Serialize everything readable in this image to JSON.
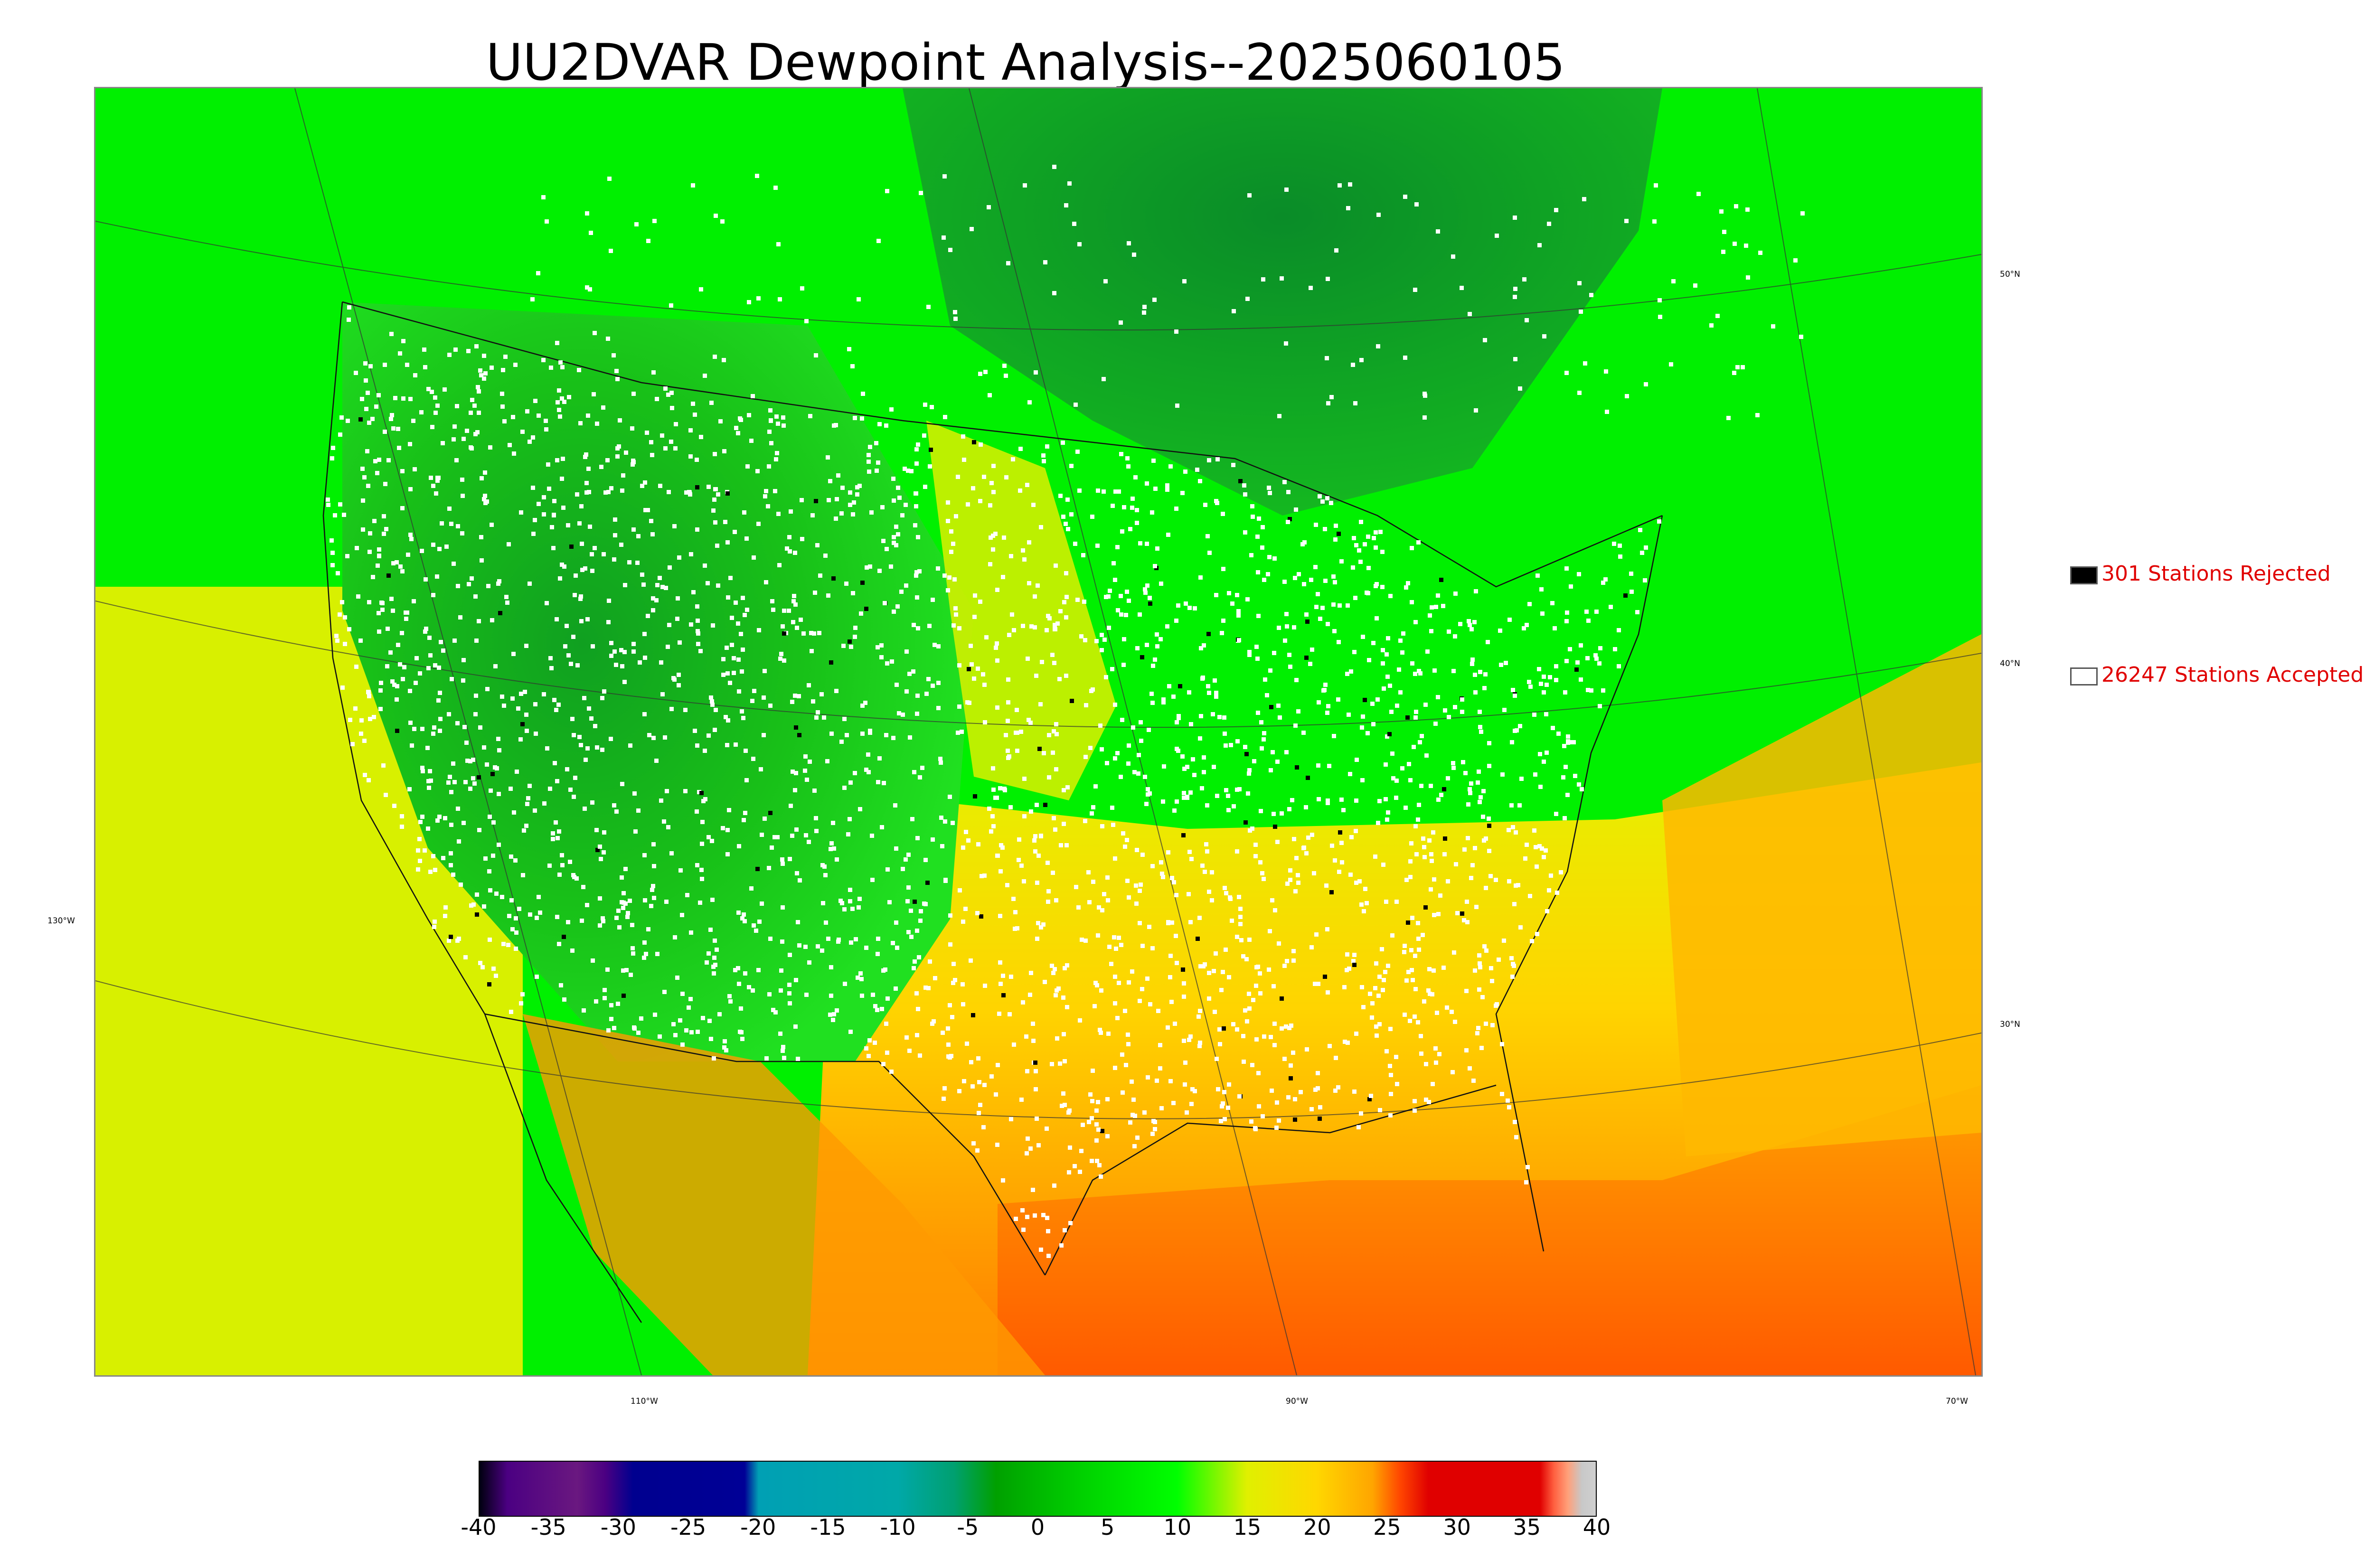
{
  "title": "UU2DVAR Dewpoint Analysis--2025060105",
  "map": {
    "latitude_labels": [
      "50°N",
      "40°N",
      "30°N"
    ],
    "longitude_labels": [
      "130°W",
      "110°W",
      "90°W",
      "70°W"
    ]
  },
  "legend": {
    "rejected": {
      "label": "301 Stations Rejected",
      "color": "#000000"
    },
    "accepted": {
      "label": "26247 Stations Accepted",
      "color": "#ffffff"
    }
  },
  "colorbar": {
    "ticks": [
      "-40",
      "-35",
      "-30",
      "-25",
      "-20",
      "-15",
      "-10",
      "-5",
      "0",
      "5",
      "10",
      "15",
      "20",
      "25",
      "30",
      "35",
      "40"
    ],
    "range": [
      -40,
      40
    ],
    "stops": [
      {
        "value": -40,
        "color": "#000010"
      },
      {
        "value": -38,
        "color": "#4b0082"
      },
      {
        "value": -33,
        "color": "#6a1880"
      },
      {
        "value": -31,
        "color": "#4b0082"
      },
      {
        "value": -29,
        "color": "#00008f"
      },
      {
        "value": -21,
        "color": "#000096"
      },
      {
        "value": -20,
        "color": "#00a0b4"
      },
      {
        "value": -10,
        "color": "#00a8a8"
      },
      {
        "value": -6,
        "color": "#00a070"
      },
      {
        "value": -3,
        "color": "#00a000"
      },
      {
        "value": 3,
        "color": "#00d000"
      },
      {
        "value": 10,
        "color": "#00ff00"
      },
      {
        "value": 15,
        "color": "#e0f000"
      },
      {
        "value": 20,
        "color": "#ffd700"
      },
      {
        "value": 24,
        "color": "#ffa500"
      },
      {
        "value": 26,
        "color": "#ff4500"
      },
      {
        "value": 28,
        "color": "#e00000"
      },
      {
        "value": 36,
        "color": "#e00000"
      },
      {
        "value": 37,
        "color": "#ff6040"
      },
      {
        "value": 38,
        "color": "#ffa07a"
      },
      {
        "value": 39,
        "color": "#c8c8c8"
      },
      {
        "value": 40,
        "color": "#d0d0d0"
      }
    ]
  }
}
